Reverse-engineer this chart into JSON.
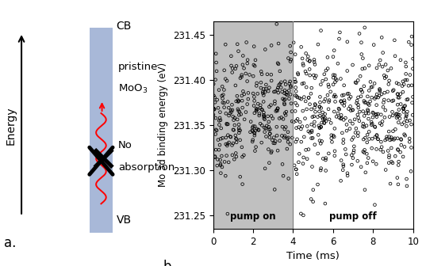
{
  "panel_a": {
    "band_color": "#a8b8d8",
    "cb_label": "CB",
    "vb_label": "VB",
    "energy_label": "Energy",
    "sublabel": "a."
  },
  "panel_b": {
    "pump_on_bg": "#c0c0c0",
    "pump_on_end": 4.0,
    "pump_off_label": "pump off",
    "pump_on_label": "pump on",
    "xlabel": "Time (ms)",
    "ylabel": "Mo 3d binding energy (eV)",
    "ylim": [
      231.235,
      231.465
    ],
    "xlim": [
      0,
      10
    ],
    "yticks": [
      231.25,
      231.3,
      231.35,
      231.4,
      231.45
    ],
    "xticks": [
      0,
      2,
      4,
      6,
      8,
      10
    ],
    "sublabel": "b.",
    "n_points_on": 320,
    "n_points_off": 480,
    "seed": 42
  }
}
